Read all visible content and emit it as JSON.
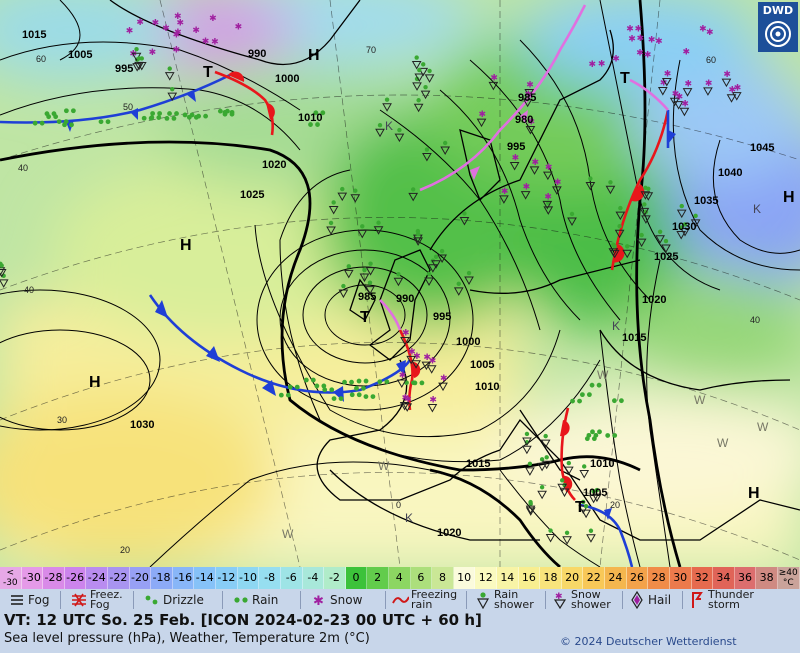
{
  "map": {
    "centers": [
      {
        "label": "H"
      },
      {
        "label": "H"
      },
      {
        "label": "H"
      },
      {
        "label": "H"
      },
      {
        "label": "H"
      },
      {
        "label": "T"
      },
      {
        "label": "T"
      },
      {
        "label": "T"
      },
      {
        "label": "T"
      },
      {
        "label": "K"
      },
      {
        "label": "K"
      },
      {
        "label": "K"
      },
      {
        "label": "K"
      },
      {
        "label": "W"
      },
      {
        "label": "W"
      },
      {
        "label": "W"
      },
      {
        "label": "W"
      },
      {
        "label": "W"
      },
      {
        "label": "W"
      }
    ],
    "isobar_labels": [
      "1015",
      "1005",
      "995",
      "990",
      "1000",
      "1010",
      "1020",
      "1025",
      "985",
      "980",
      "995",
      "1045",
      "1040",
      "1035",
      "1030",
      "1025",
      "1020",
      "1015",
      "985",
      "990",
      "995",
      "1000",
      "1005",
      "1010",
      "1015",
      "1030",
      "1010",
      "1005",
      "1020"
    ],
    "temp_labels": [
      "60",
      "50",
      "40",
      "40",
      "30",
      "20",
      "70",
      "60",
      "40",
      "20",
      "0"
    ]
  },
  "scale": {
    "cells": [
      {
        "label": "<\n-30",
        "color": "#e6a8e6"
      },
      {
        "label": "-30",
        "color": "#e59ae8"
      },
      {
        "label": "-28",
        "color": "#d98ae8"
      },
      {
        "label": "-26",
        "color": "#cc84ec"
      },
      {
        "label": "-24",
        "color": "#b98cf0"
      },
      {
        "label": "-22",
        "color": "#a894f0"
      },
      {
        "label": "-20",
        "color": "#97a0f5"
      },
      {
        "label": "-18",
        "color": "#8caaf7"
      },
      {
        "label": "-16",
        "color": "#88b6f8"
      },
      {
        "label": "-14",
        "color": "#86c2f8"
      },
      {
        "label": "-12",
        "color": "#88cdf6"
      },
      {
        "label": "-10",
        "color": "#8ed7f2"
      },
      {
        "label": "-8",
        "color": "#96def0"
      },
      {
        "label": "-6",
        "color": "#9ee4e6"
      },
      {
        "label": "-4",
        "color": "#a8e8da"
      },
      {
        "label": "-2",
        "color": "#b0ecc9"
      },
      {
        "label": "0",
        "color": "#3cc23a"
      },
      {
        "label": "2",
        "color": "#62cc4c"
      },
      {
        "label": "4",
        "color": "#8cd662"
      },
      {
        "label": "6",
        "color": "#acdf7c"
      },
      {
        "label": "8",
        "color": "#cae796"
      },
      {
        "label": "10",
        "color": "#fbfbdc"
      },
      {
        "label": "12",
        "color": "#fafac0"
      },
      {
        "label": "14",
        "color": "#f8f4a6"
      },
      {
        "label": "16",
        "color": "#f8ee90"
      },
      {
        "label": "18",
        "color": "#f8e47c"
      },
      {
        "label": "20",
        "color": "#f8d868"
      },
      {
        "label": "22",
        "color": "#f8c858"
      },
      {
        "label": "24",
        "color": "#f4b64e"
      },
      {
        "label": "26",
        "color": "#f3a24a"
      },
      {
        "label": "28",
        "color": "#f08c48"
      },
      {
        "label": "30",
        "color": "#ec7a4c"
      },
      {
        "label": "32",
        "color": "#e66a4e"
      },
      {
        "label": "34",
        "color": "#e06458"
      },
      {
        "label": "36",
        "color": "#dc6e6e"
      },
      {
        "label": "38",
        "color": "#cf8a82"
      },
      {
        "label": "≥40\n°C",
        "color": "#caa39a"
      }
    ]
  },
  "legend": {
    "fog": "Fog",
    "freezing_fog": "Freez.\nFog",
    "drizzle": "Drizzle",
    "rain": "Rain",
    "snow": "Snow",
    "freezing_rain": "Freezing\nrain",
    "rain_shower": "Rain\nshower",
    "snow_shower": "Snow\nshower",
    "hail": "Hail",
    "thunderstorm": "Thunder\nstorm"
  },
  "footer": {
    "validity": "VT: 12 UTC So.  25 Feb. [ICON 2024-02-23  00 UTC + 60 h]",
    "subtitle": "Sea level pressure (hPa), Weather, Temperature 2m (°C)",
    "copyright": "© 2024 Deutscher Wetterdienst",
    "logo": "DWD"
  },
  "colors": {
    "cold_front": "#1f3fd6",
    "warm_front": "#e8161b",
    "occlusion": "#e070e0",
    "isobar": "#000000",
    "coast": "#000000",
    "legend_bg": "#c8d6ea",
    "rain_green": "#3aa832",
    "snow_purple": "#a020a0"
  }
}
